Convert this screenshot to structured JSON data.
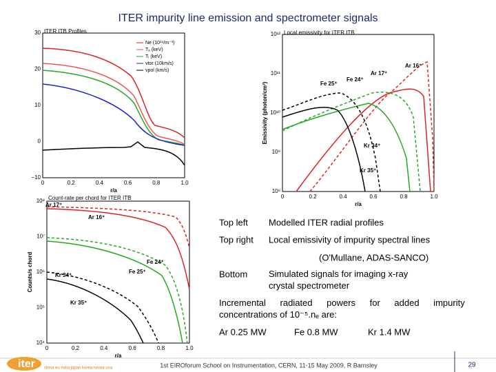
{
  "title": "ITER impurity line emission and spectrometer signals",
  "figures": [
    {
      "title": "ITER ITB Profiles",
      "legend": [
        "Ne (10¹⁹/m⁻³)",
        "Tₑ (keV)",
        "Tᵢ (keV)",
        "vtor (10km/s)",
        "vpol (km/s)"
      ],
      "yticks": [
        "30",
        "20",
        "10",
        "0",
        "−10"
      ],
      "xticks": [
        "0",
        "0.2",
        "0.4",
        "0.6",
        "0.8",
        "1.0"
      ],
      "xlabel": "r/a"
    },
    {
      "title": "Local emissivity for ITER ITB",
      "ylabel": "Emissivity (photon/cm³)",
      "yticks": [
        "10¹²",
        "10¹¹",
        "10¹⁰",
        "10⁹",
        "10⁸"
      ],
      "xticks": [
        "0",
        "0.2",
        "0.4",
        "0.6",
        "0.8",
        "1.0"
      ],
      "xlabel": "r/a",
      "labels": [
        "Fe 25⁺",
        "Fe 24⁺",
        "Ar 17⁺",
        "Ar 16⁺",
        "Kr 34⁺",
        "Kr 35⁺"
      ]
    },
    {
      "title": "Count-rate per chord for ITER ITB",
      "ylabel": "Counts/s chord",
      "yticks": [
        "10⁸",
        "10⁷",
        "10⁶",
        "10⁵",
        "10⁴"
      ],
      "xticks": [
        "0",
        "0.2",
        "0.4",
        "0.6",
        "0.8",
        "1.0"
      ],
      "xlabel": "r/a",
      "labels": [
        "Ar 17⁺",
        "Ar 16⁺",
        "Fe 24⁺",
        "Fe 25⁺",
        "Kr 34⁺",
        "Kr 35⁺"
      ]
    }
  ],
  "notes": [
    {
      "label": "Top left",
      "text": "Modelled ITER radial profiles"
    },
    {
      "label": "Top right",
      "text": "Local emissivity of impurity spectral lines"
    },
    {
      "text": "(O'Mullane, ADAS-SANCO)"
    },
    {
      "label": "Bottom",
      "text": "Simulated signals for imaging x-ray crystal spectrometer"
    }
  ],
  "powers_intro": "Incremental radiated powers for added impurity concentrations of 10⁻⁵.nₑ are:",
  "powers": [
    "Ar 0.25 MW",
    "Fe 0.8 MW",
    "Kr 1.4 MW"
  ],
  "footer": {
    "logo": "iter",
    "members": "china eu india japan korea russia usa",
    "text": "1st EIROforum School on Instrumentation, CERN, 11-15 May 2009, R Barnsley",
    "page": "29"
  }
}
